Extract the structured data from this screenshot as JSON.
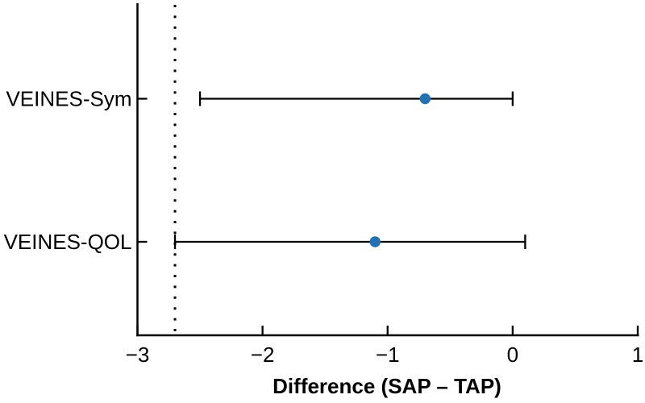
{
  "chart_data": {
    "type": "scatter",
    "subtype": "forest-plot-with-error-bars",
    "title": "",
    "xlabel": "Difference (SAP – TAP)",
    "ylabel": "",
    "xlim": [
      -3,
      1
    ],
    "x_ticks": [
      -3,
      -2,
      -1,
      0,
      1
    ],
    "x_tick_labels": [
      "−3",
      "−2",
      "−1",
      "0",
      "1"
    ],
    "categories": [
      "VEINES-Sym",
      "VEINES-QOL"
    ],
    "series": [
      {
        "name": "VEINES-Sym",
        "estimate": -0.7,
        "ci_low": -2.5,
        "ci_high": 0.0
      },
      {
        "name": "VEINES-QOL",
        "estimate": -1.1,
        "ci_low": -2.7,
        "ci_high": 0.1
      }
    ],
    "reference_line": {
      "x": -2.7,
      "style": "dotted",
      "color": "#000000"
    },
    "grid": false,
    "legend": false,
    "marker_color": "#2171b5",
    "line_color": "#000000",
    "axis_color": "#000000",
    "background": "#ffffff"
  }
}
